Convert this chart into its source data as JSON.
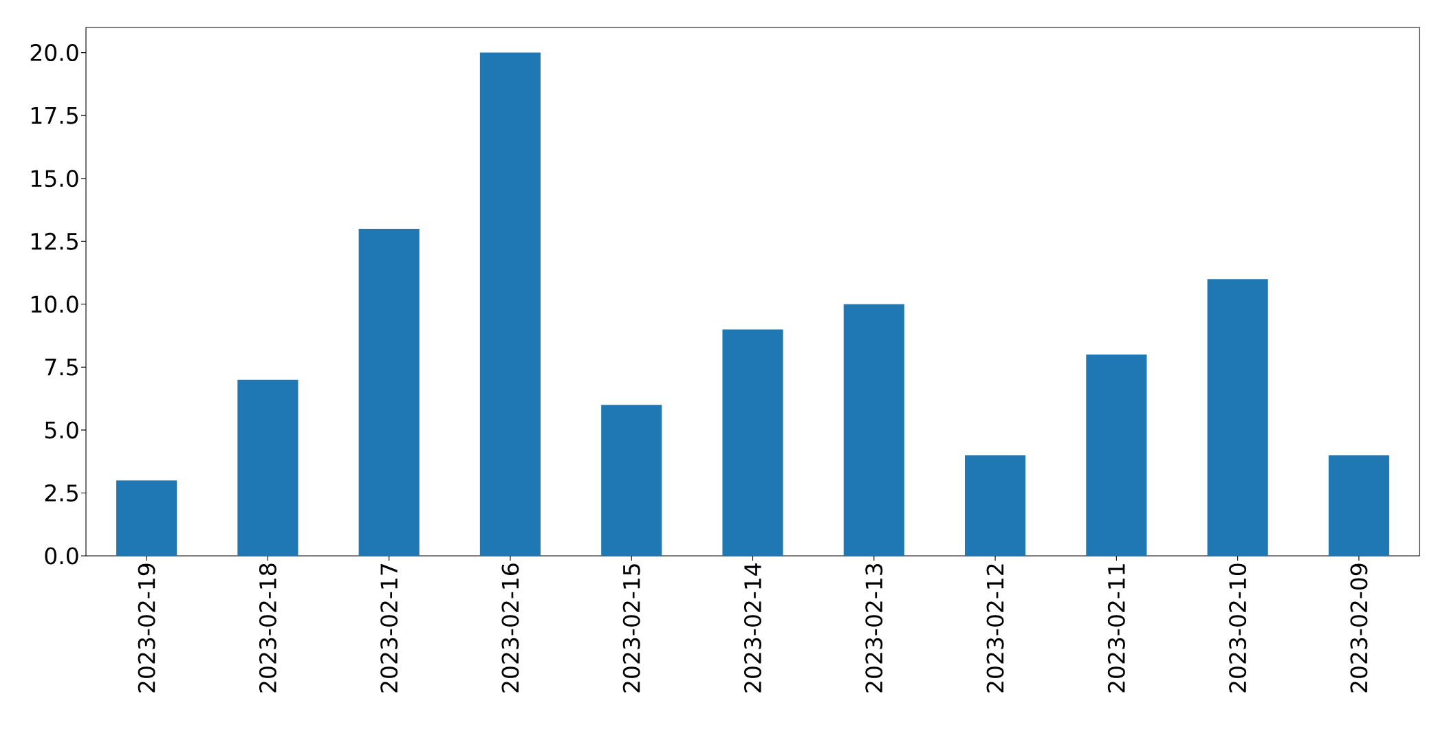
{
  "chart_data": {
    "type": "bar",
    "categories": [
      "2023-02-19",
      "2023-02-18",
      "2023-02-17",
      "2023-02-16",
      "2023-02-15",
      "2023-02-14",
      "2023-02-13",
      "2023-02-12",
      "2023-02-11",
      "2023-02-10",
      "2023-02-09"
    ],
    "values": [
      3,
      7,
      13,
      20,
      6,
      9,
      10,
      4,
      8,
      11,
      4
    ],
    "color": "#1f77b4",
    "ylim": [
      0,
      21
    ],
    "yticks": [
      {
        "value": 0,
        "label": "0.0"
      },
      {
        "value": 2.5,
        "label": "2.5"
      },
      {
        "value": 5,
        "label": "5.0"
      },
      {
        "value": 7.5,
        "label": "7.5"
      },
      {
        "value": 10,
        "label": "10.0"
      },
      {
        "value": 12.5,
        "label": "12.5"
      },
      {
        "value": 15,
        "label": "15.0"
      },
      {
        "value": 17.5,
        "label": "17.5"
      },
      {
        "value": 20,
        "label": "20.0"
      }
    ]
  }
}
